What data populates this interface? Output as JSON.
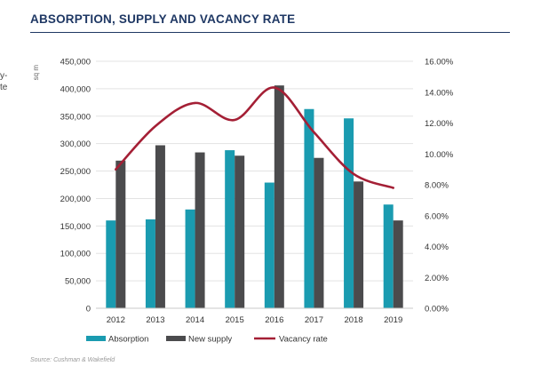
{
  "header": {
    "title": "ABSORPTION, SUPPLY AND VACANCY RATE"
  },
  "fragments": {
    "line1": "y-",
    "line2": "te"
  },
  "footer": {
    "source": "Source: Cushman & Wakefield"
  },
  "colors": {
    "absorption": "#1a9bb0",
    "new_supply": "#4b4b4d",
    "vacancy": "#a41f35",
    "title": "#1f3864"
  },
  "chart_data": {
    "type": "bar",
    "title": "ABSORPTION, SUPPLY AND VACANCY RATE",
    "ylabel": "sq m",
    "categories": [
      "2012",
      "2013",
      "2014",
      "2015",
      "2016",
      "2017",
      "2018",
      "2019"
    ],
    "series": [
      {
        "name": "Absorption",
        "type": "bar",
        "axis": "left",
        "values": [
          160000,
          162000,
          180000,
          288000,
          229000,
          363000,
          346000,
          189000
        ]
      },
      {
        "name": "New supply",
        "type": "bar",
        "axis": "left",
        "values": [
          269000,
          297000,
          284000,
          278000,
          406000,
          274000,
          231000,
          160000
        ]
      },
      {
        "name": "Vacancy rate",
        "type": "line",
        "axis": "right",
        "values": [
          9.0,
          11.8,
          13.3,
          12.2,
          14.3,
          11.4,
          8.7,
          7.8
        ]
      }
    ],
    "ylim": [
      0,
      450000
    ],
    "yticks": [
      "0",
      "50,000",
      "100,000",
      "150,000",
      "200,000",
      "250,000",
      "300,000",
      "350,000",
      "400,000",
      "450,000"
    ],
    "y2lim": [
      0,
      16
    ],
    "y2ticks": [
      "0.00%",
      "2.00%",
      "4.00%",
      "6.00%",
      "8.00%",
      "10.00%",
      "12.00%",
      "14.00%",
      "16.00%"
    ],
    "grid": true,
    "legend": "bottom"
  }
}
